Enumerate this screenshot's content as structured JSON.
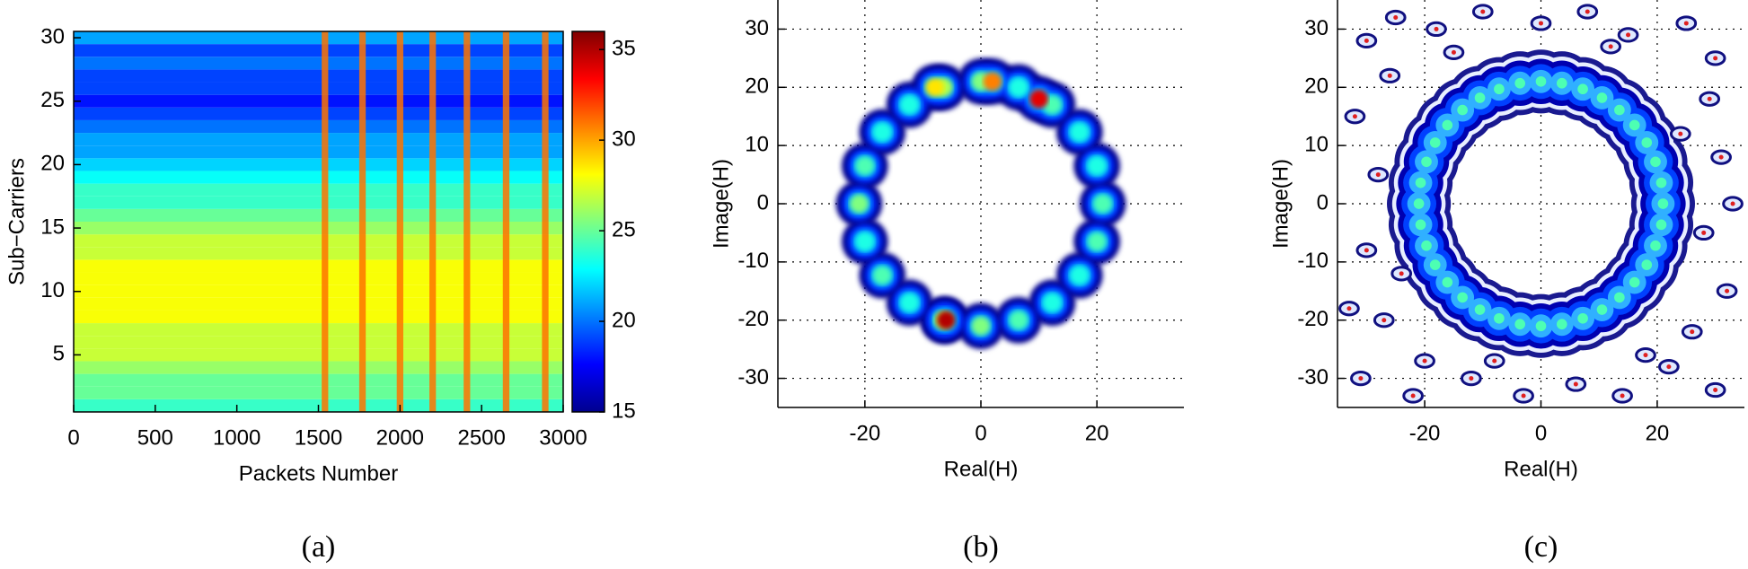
{
  "chart_data": [
    {
      "type": "heatmap",
      "xlabel": "Packets Number",
      "ylabel": "Sub−Carriers",
      "caption": "(a)",
      "xlim": [
        0,
        3000
      ],
      "xticks": [
        0,
        500,
        1000,
        1500,
        2000,
        2500,
        3000
      ],
      "ylim": [
        0.5,
        30.5
      ],
      "yticks": [
        5,
        10,
        15,
        20,
        25,
        30
      ],
      "rows": [
        24,
        25,
        25,
        26,
        27,
        27,
        27,
        28,
        28,
        28,
        28,
        28,
        27,
        27,
        26,
        25,
        24,
        24,
        23,
        22,
        21,
        21,
        20,
        19,
        18,
        19,
        19,
        20,
        19,
        21
      ],
      "spikes": {
        "x": [
          1540,
          1770,
          2000,
          2200,
          2410,
          2650,
          2890
        ],
        "values": [
          31,
          31,
          31,
          31,
          31,
          31,
          31
        ]
      },
      "clim": [
        15,
        36
      ],
      "cticks": [
        15,
        20,
        25,
        30,
        35
      ]
    },
    {
      "type": "density",
      "xlabel": "Real(H)",
      "ylabel": "Image(H)",
      "caption": "(b)",
      "xlim": [
        -35,
        35
      ],
      "xticks": [
        -20,
        0,
        20
      ],
      "ylim": [
        -35,
        35
      ],
      "yticks": [
        -30,
        -20,
        -10,
        0,
        10,
        20,
        30
      ],
      "grid": true,
      "x": [
        21,
        20,
        17,
        12.3,
        6.5,
        0,
        -6.5,
        -12.3,
        -17,
        -20,
        -21,
        -20,
        -17,
        -12.3,
        -6.5,
        0,
        6.5,
        12.3,
        17,
        20,
        10,
        -6,
        2,
        -8
      ],
      "y": [
        0,
        6.5,
        12.3,
        17,
        20,
        21,
        20,
        17,
        12.3,
        6.5,
        0,
        -6.5,
        -12.3,
        -17,
        -20,
        -21,
        -20,
        -17,
        -12.3,
        -6.5,
        18,
        -20,
        21,
        20
      ],
      "values": [
        0.45,
        0.4,
        0.4,
        0.45,
        0.4,
        0.5,
        0.55,
        0.4,
        0.4,
        0.45,
        0.5,
        0.4,
        0.45,
        0.4,
        0.55,
        0.5,
        0.45,
        0.4,
        0.4,
        0.45,
        0.9,
        0.95,
        0.75,
        0.65
      ]
    },
    {
      "type": "contour",
      "xlabel": "Real(H)",
      "ylabel": "Image(H)",
      "caption": "(c)",
      "xlim": [
        -35,
        35
      ],
      "xticks": [
        -20,
        0,
        20
      ],
      "ylim": [
        -35,
        35
      ],
      "yticks": [
        -30,
        -20,
        -10,
        0,
        10,
        20,
        30
      ],
      "grid": true,
      "x": [
        21,
        20.7,
        19.7,
        18.2,
        16.1,
        13.5,
        10.5,
        7.2,
        3.6,
        0,
        -3.6,
        -7.2,
        -10.5,
        -13.5,
        -16.1,
        -18.2,
        -19.7,
        -20.7,
        -21,
        -20.7,
        -19.7,
        -18.2,
        -16.1,
        -13.5,
        -10.5,
        -7.2,
        -3.6,
        0,
        3.6,
        7.2,
        10.5,
        13.5,
        16.1,
        18.2,
        19.7,
        20.7
      ],
      "y": [
        0,
        3.6,
        7.2,
        10.5,
        13.5,
        16.1,
        18.2,
        19.7,
        20.7,
        21,
        20.7,
        19.7,
        18.2,
        16.1,
        13.5,
        10.5,
        7.2,
        3.6,
        0,
        -3.6,
        -7.2,
        -10.5,
        -13.5,
        -16.1,
        -18.2,
        -19.7,
        -20.7,
        -21,
        -20.7,
        -19.7,
        -18.2,
        -16.1,
        -13.5,
        -10.5,
        -7.2,
        -3.6
      ],
      "values": [
        0.45,
        0.45,
        0.45,
        0.45,
        0.45,
        0.45,
        0.45,
        0.45,
        0.45,
        0.45,
        0.45,
        0.45,
        0.45,
        0.45,
        0.45,
        0.45,
        0.45,
        0.45,
        0.45,
        0.45,
        0.45,
        0.45,
        0.45,
        0.45,
        0.45,
        0.45,
        0.45,
        0.45,
        0.45,
        0.45,
        0.45,
        0.45,
        0.45,
        0.45,
        0.45,
        0.45
      ],
      "noise_x": [
        -30,
        -25,
        -18,
        -10,
        0,
        8,
        15,
        25,
        30,
        -32,
        -28,
        -30,
        -27,
        -31,
        -22,
        -12,
        -3,
        6,
        14,
        22,
        30,
        32,
        28,
        31,
        29,
        -26,
        -24,
        26,
        -15,
        12,
        -8,
        18,
        -33,
        33,
        -20,
        24
      ],
      "noise_y": [
        28,
        32,
        30,
        33,
        31,
        33,
        29,
        31,
        25,
        15,
        5,
        -8,
        -20,
        -30,
        -33,
        -30,
        -33,
        -31,
        -33,
        -28,
        -32,
        -15,
        -5,
        8,
        18,
        22,
        -12,
        -22,
        26,
        27,
        -27,
        -26,
        -18,
        0,
        -27,
        12
      ]
    }
  ]
}
